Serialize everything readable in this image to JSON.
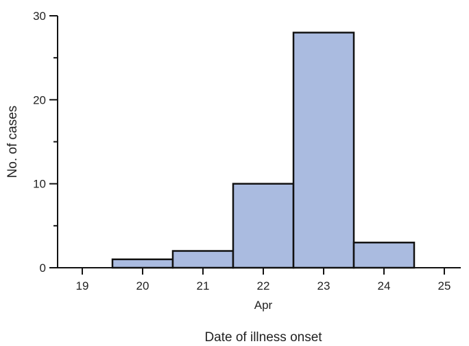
{
  "chart_data": {
    "type": "bar",
    "title": "",
    "xlabel": "Date of illness onset",
    "x_sublabel": "Apr",
    "ylabel": "No. of cases",
    "categories": [
      "19",
      "20",
      "21",
      "22",
      "23",
      "24",
      "25"
    ],
    "values": [
      0,
      1,
      2,
      10,
      28,
      3,
      0
    ],
    "ylim": [
      0,
      30
    ],
    "yticks_major": [
      0,
      10,
      20,
      30
    ],
    "yticks_minor": [
      5,
      15,
      25
    ],
    "bar_color": "#aabbe0",
    "edge_color": "#111111",
    "grid": false,
    "legend": "none"
  }
}
